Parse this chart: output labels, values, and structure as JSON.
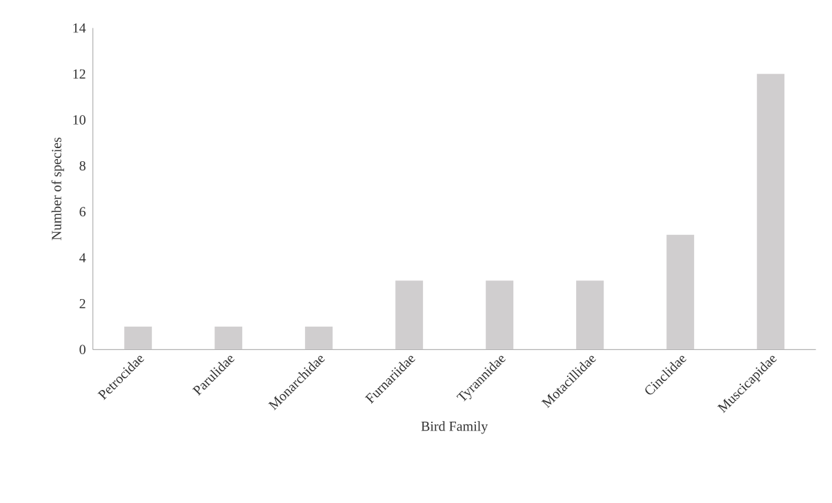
{
  "chart_data": {
    "type": "bar",
    "xlabel": "Bird Family",
    "ylabel": "Number of species",
    "categories": [
      "Petrocidae",
      "Parulidae",
      "Monarchidae",
      "Furnariidae",
      "Tyrannidae",
      "Motacillidae",
      "Cinclidae",
      "Muscicapidae"
    ],
    "values": [
      1,
      1,
      1,
      3,
      3,
      3,
      5,
      12
    ],
    "color": "#d0cecf",
    "ylim": [
      0,
      14
    ],
    "yticks": [
      0,
      2,
      4,
      6,
      8,
      10,
      12,
      14
    ]
  }
}
